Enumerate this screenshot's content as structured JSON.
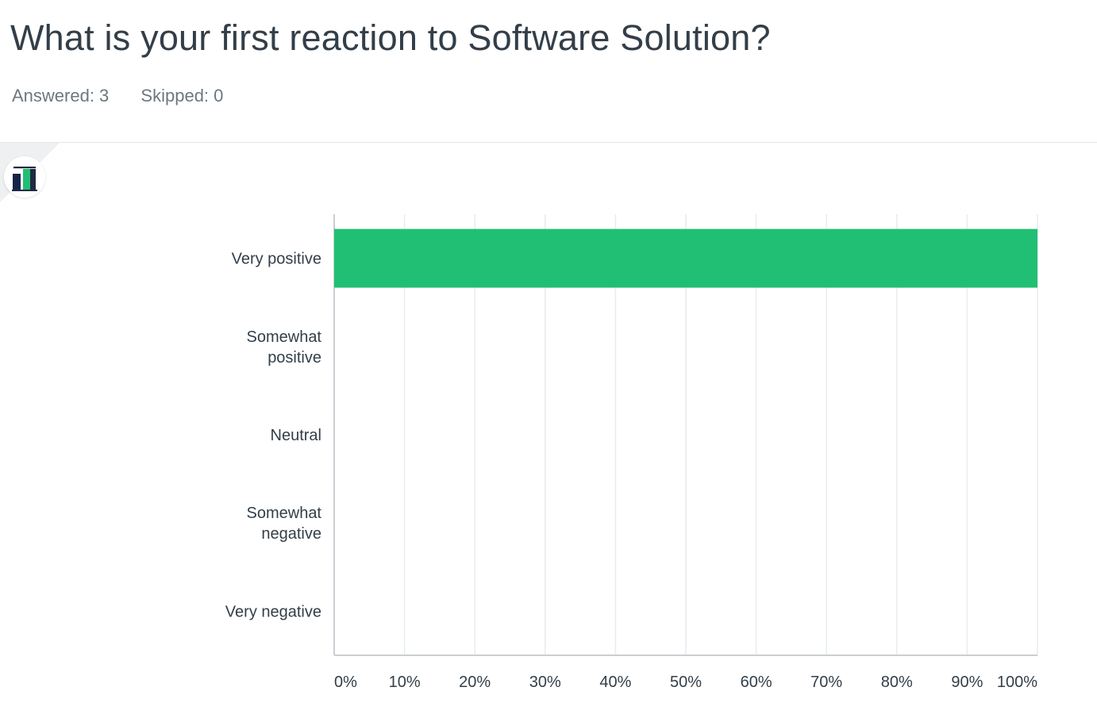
{
  "question": {
    "title": "What is your first reaction to Software Solution?"
  },
  "stats": {
    "answered": "Answered: 3",
    "skipped": "Skipped: 0"
  },
  "colors": {
    "bar": "#21bf73",
    "grid": "#e9ecee",
    "axis": "#c9ced2",
    "text": "#333e48"
  },
  "chart_toggle": {
    "icon": "bar-chart-icon"
  },
  "chart_data": {
    "type": "bar",
    "orientation": "horizontal",
    "title": "",
    "xlabel": "",
    "ylabel": "",
    "categories": [
      [
        "Very positive"
      ],
      [
        "Somewhat",
        "positive"
      ],
      [
        "Neutral"
      ],
      [
        "Somewhat",
        "negative"
      ],
      [
        "Very negative"
      ]
    ],
    "values": [
      100,
      0,
      0,
      0,
      0
    ],
    "xlim": [
      0,
      100
    ],
    "ticks": [
      "0%",
      "10%",
      "20%",
      "30%",
      "40%",
      "50%",
      "60%",
      "70%",
      "80%",
      "90%",
      "100%"
    ],
    "grid": true
  }
}
